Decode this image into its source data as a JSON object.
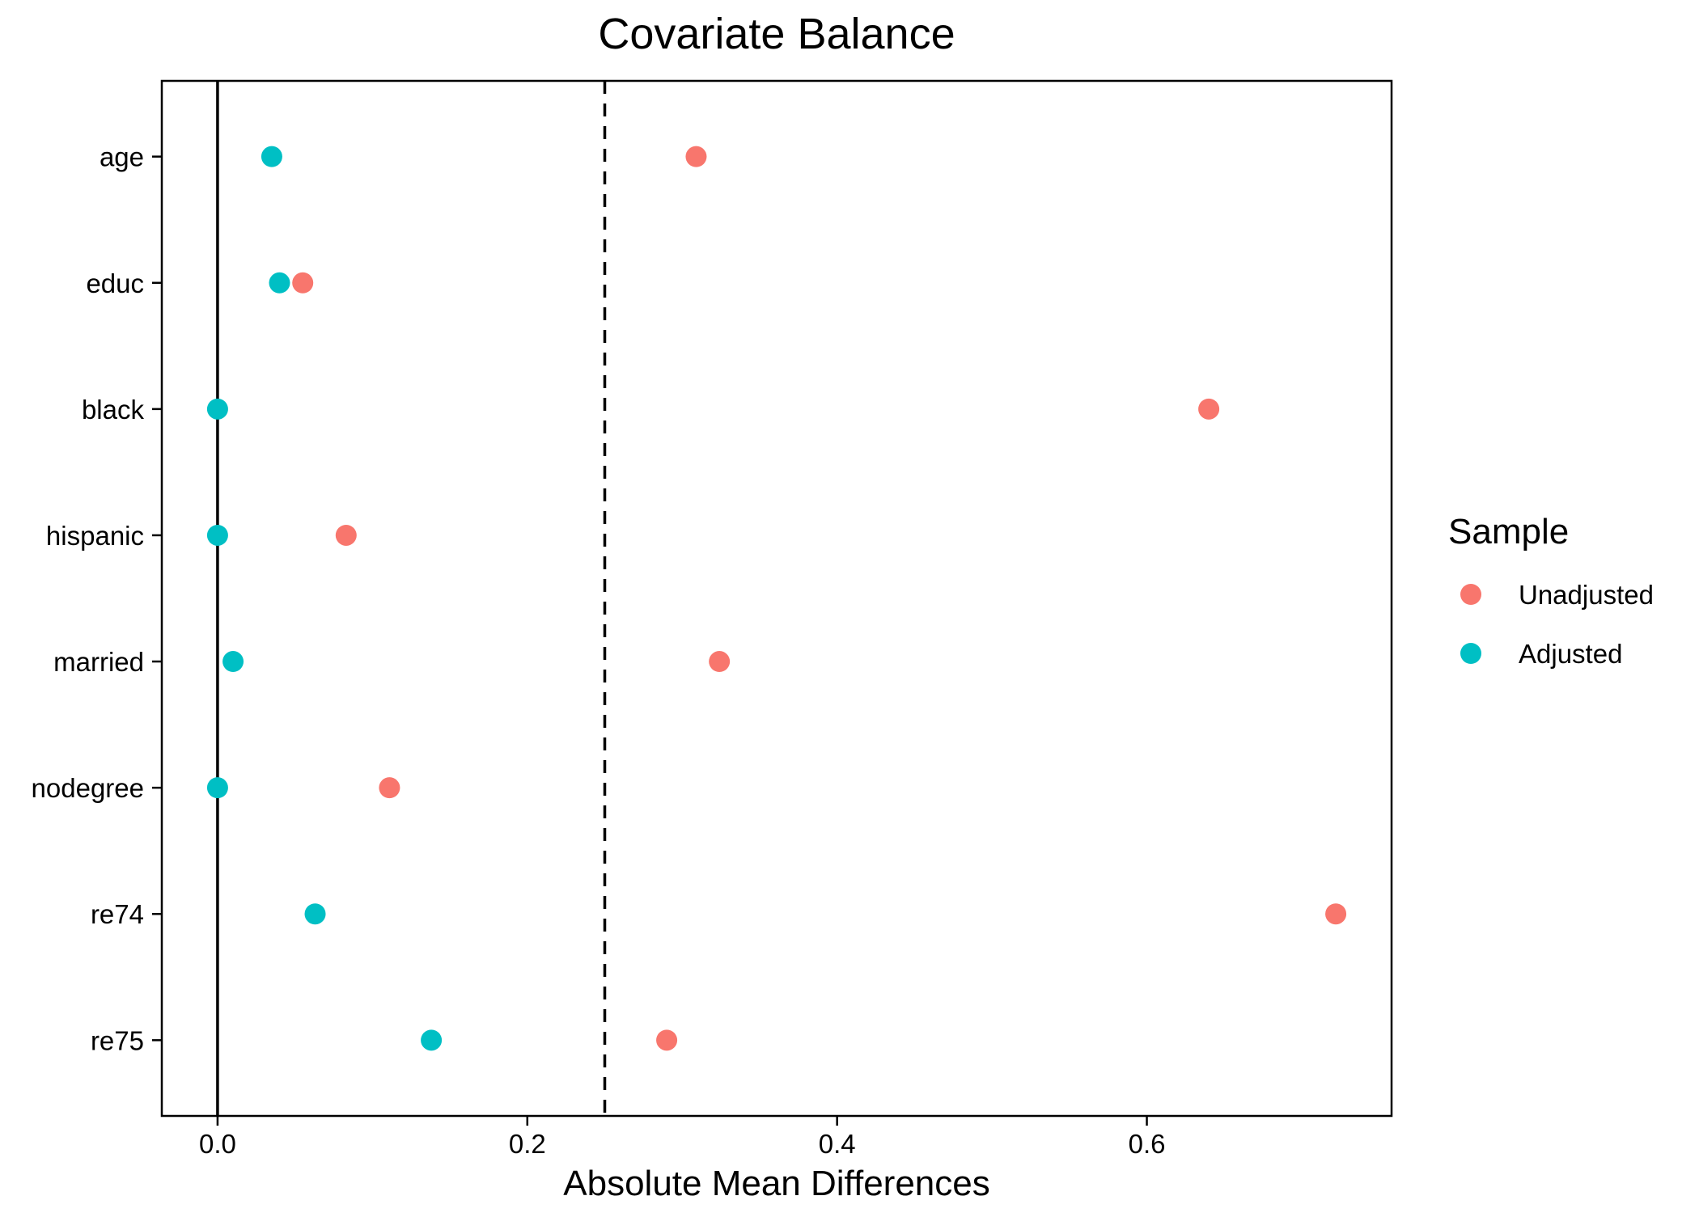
{
  "chart_data": {
    "type": "scatter",
    "title": "Covariate Balance",
    "xlabel": "Absolute Mean Differences",
    "ylabel": "",
    "xlim": [
      -0.036,
      0.758
    ],
    "xticks": [
      0.0,
      0.2,
      0.4,
      0.6
    ],
    "xtick_labels": [
      "0.0",
      "0.2",
      "0.4",
      "0.6"
    ],
    "categories": [
      "age",
      "educ",
      "black",
      "hispanic",
      "married",
      "nodegree",
      "re74",
      "re75"
    ],
    "reference_lines": [
      {
        "x": 0.0,
        "style": "solid"
      },
      {
        "x": 0.25,
        "style": "dashed"
      }
    ],
    "grid": false,
    "legend": {
      "title": "Sample",
      "position": "right"
    },
    "series": [
      {
        "name": "Unadjusted",
        "color": "#F8766D",
        "values": [
          0.309,
          0.055,
          0.64,
          0.083,
          0.324,
          0.111,
          0.722,
          0.29
        ]
      },
      {
        "name": "Adjusted",
        "color": "#00BFC4",
        "values": [
          0.035,
          0.04,
          0.0,
          0.0,
          0.01,
          0.0,
          0.063,
          0.138
        ]
      }
    ]
  }
}
